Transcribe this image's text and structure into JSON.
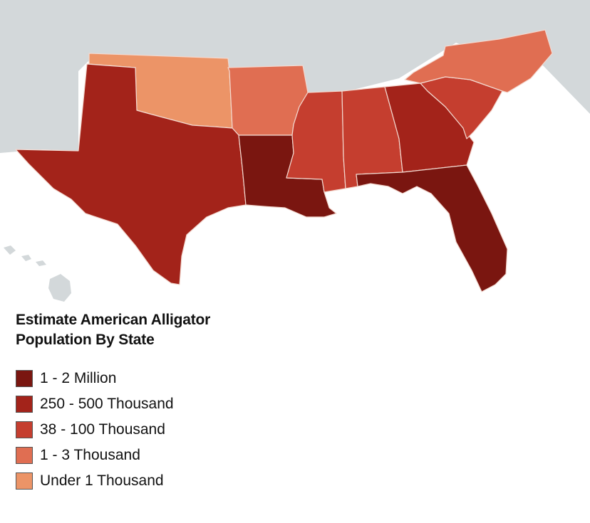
{
  "legend": {
    "title": "Estimate American Alligator Population By State",
    "items": [
      {
        "label": "1 - 2 Million",
        "color": "#7a1610"
      },
      {
        "label": "250 - 500 Thousand",
        "color": "#a3231a"
      },
      {
        "label": "38 - 100 Thousand",
        "color": "#c53e2f"
      },
      {
        "label": "1 - 3 Thousand",
        "color": "#e06e52"
      },
      {
        "label": "Under 1 Thousand",
        "color": "#ec9467"
      }
    ]
  },
  "states": [
    {
      "name": "Louisiana",
      "category": "1 - 2 Million"
    },
    {
      "name": "Florida",
      "category": "1 - 2 Million"
    },
    {
      "name": "Texas",
      "category": "250 - 500 Thousand"
    },
    {
      "name": "Georgia",
      "category": "250 - 500 Thousand"
    },
    {
      "name": "Mississippi",
      "category": "38 - 100 Thousand"
    },
    {
      "name": "Alabama",
      "category": "38 - 100 Thousand"
    },
    {
      "name": "South Carolina",
      "category": "38 - 100 Thousand"
    },
    {
      "name": "Arkansas",
      "category": "1 - 3 Thousand"
    },
    {
      "name": "North Carolina",
      "category": "1 - 3 Thousand"
    },
    {
      "name": "Oklahoma",
      "category": "Under 1 Thousand"
    }
  ],
  "colors": {
    "other_land": "#d3d8da",
    "water": "#ffffff"
  }
}
